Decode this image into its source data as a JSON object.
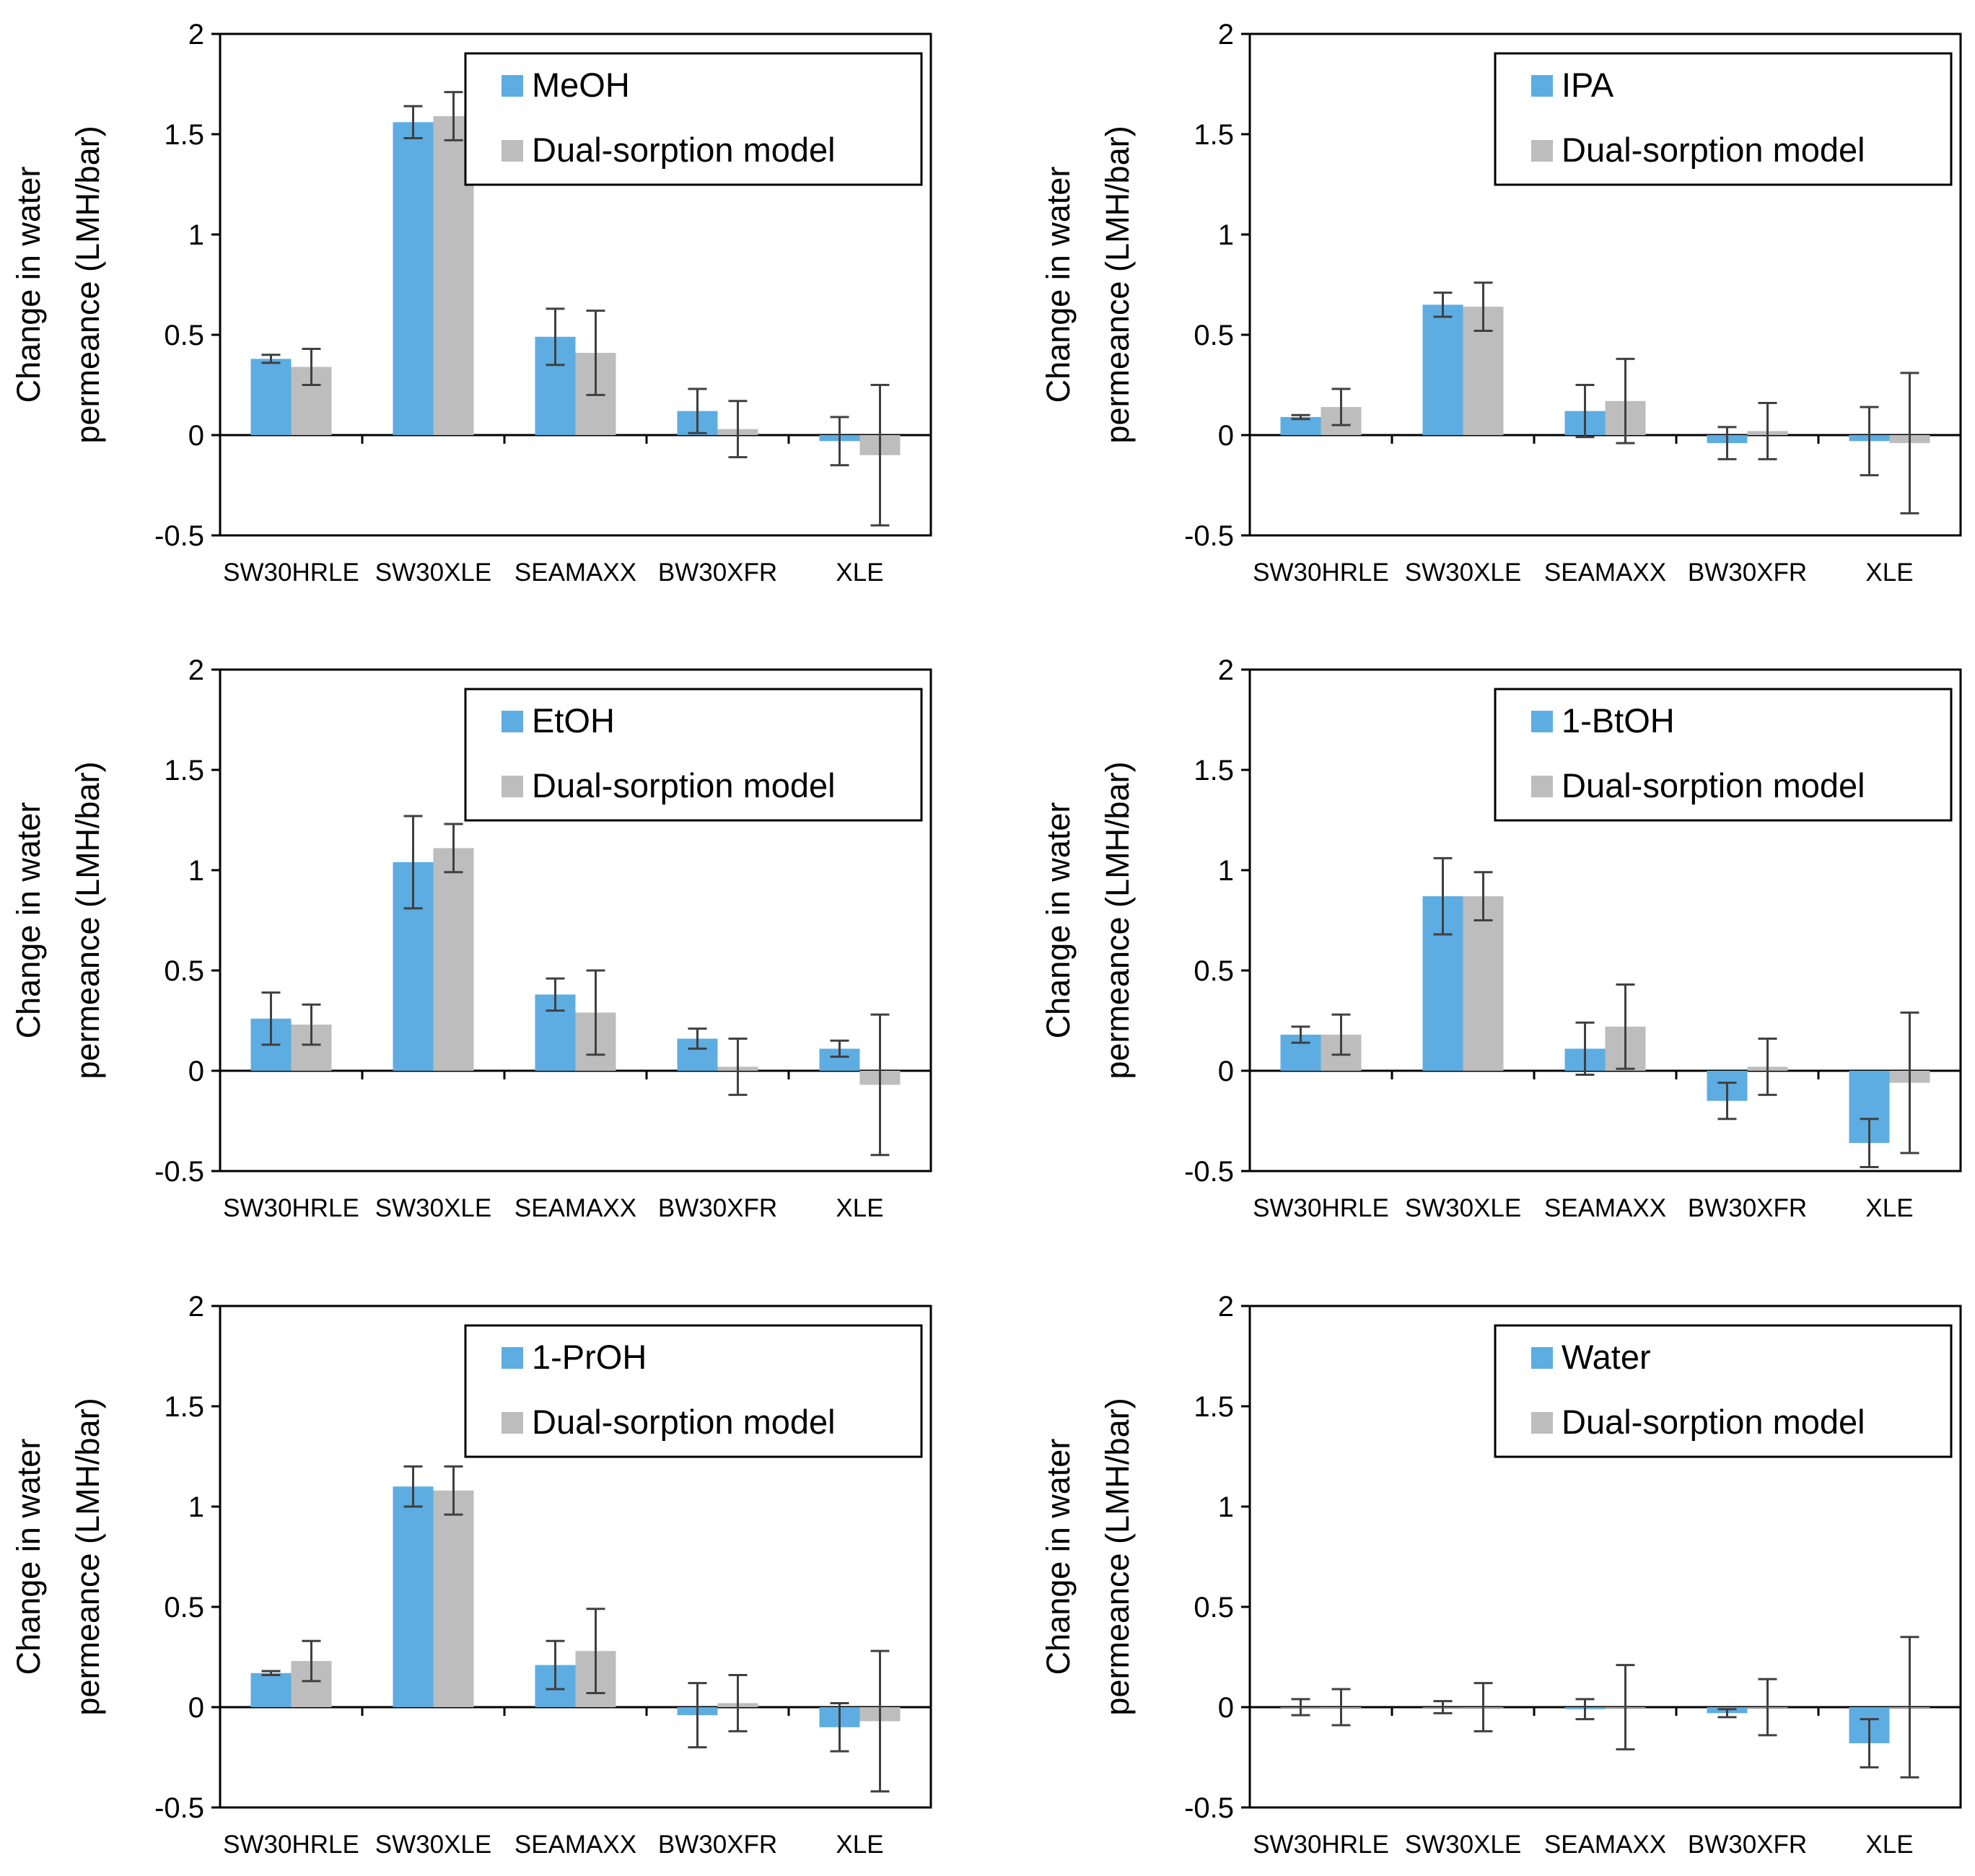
{
  "colors": {
    "measured": "#5DADE2",
    "model": "#BDBDBD",
    "errorbar": "#404040",
    "axis": "#000000"
  },
  "y_axis": {
    "label_line1": "Change in water",
    "label_line2": "permeance (LMH/bar)",
    "ticks": [
      "2",
      "1.5",
      "1",
      "0.5",
      "0",
      "-0.5"
    ],
    "tick_values": [
      2,
      1.5,
      1,
      0.5,
      0,
      -0.5
    ],
    "ylim": [
      -0.5,
      2
    ]
  },
  "categories": [
    "SW30HRLE",
    "SW30XLE",
    "SEAMAXX",
    "BW30XFR",
    "XLE"
  ],
  "model_label": "Dual-sorption model",
  "chart_data": [
    {
      "type": "bar",
      "title": "",
      "xlabel": "",
      "ylabel": "Change in water permeance (LMH/bar)",
      "categories": [
        "SW30HRLE",
        "SW30XLE",
        "SEAMAXX",
        "BW30XFR",
        "XLE"
      ],
      "ylim": [
        -0.5,
        2
      ],
      "legend": "top-right",
      "series": [
        {
          "name": "MeOH",
          "values": [
            0.38,
            1.56,
            0.49,
            0.12,
            -0.03
          ],
          "errors": [
            0.02,
            0.08,
            0.14,
            0.11,
            0.12
          ]
        },
        {
          "name": "Dual-sorption model",
          "values": [
            0.34,
            1.59,
            0.41,
            0.03,
            -0.1
          ],
          "errors": [
            0.09,
            0.12,
            0.21,
            0.14,
            0.35
          ]
        }
      ]
    },
    {
      "type": "bar",
      "title": "",
      "xlabel": "",
      "ylabel": "Change in water permeance (LMH/bar)",
      "categories": [
        "SW30HRLE",
        "SW30XLE",
        "SEAMAXX",
        "BW30XFR",
        "XLE"
      ],
      "ylim": [
        -0.5,
        2
      ],
      "legend": "top-right",
      "series": [
        {
          "name": "IPA",
          "values": [
            0.09,
            0.65,
            0.12,
            -0.04,
            -0.03
          ],
          "errors": [
            0.01,
            0.06,
            0.13,
            0.08,
            0.17
          ]
        },
        {
          "name": "Dual-sorption model",
          "values": [
            0.14,
            0.64,
            0.17,
            0.02,
            -0.04
          ],
          "errors": [
            0.09,
            0.12,
            0.21,
            0.14,
            0.35
          ]
        }
      ]
    },
    {
      "type": "bar",
      "title": "",
      "xlabel": "",
      "ylabel": "Change in water permeance (LMH/bar)",
      "categories": [
        "SW30HRLE",
        "SW30XLE",
        "SEAMAXX",
        "BW30XFR",
        "XLE"
      ],
      "ylim": [
        -0.5,
        2
      ],
      "legend": "top-right",
      "series": [
        {
          "name": "EtOH",
          "values": [
            0.26,
            1.04,
            0.38,
            0.16,
            0.11
          ],
          "errors": [
            0.13,
            0.23,
            0.08,
            0.05,
            0.04
          ]
        },
        {
          "name": "Dual-sorption model",
          "values": [
            0.23,
            1.11,
            0.29,
            0.02,
            -0.07
          ],
          "errors": [
            0.1,
            0.12,
            0.21,
            0.14,
            0.35
          ]
        }
      ]
    },
    {
      "type": "bar",
      "title": "",
      "xlabel": "",
      "ylabel": "Change in water permeance (LMH/bar)",
      "categories": [
        "SW30HRLE",
        "SW30XLE",
        "SEAMAXX",
        "BW30XFR",
        "XLE"
      ],
      "ylim": [
        -0.5,
        2
      ],
      "legend": "top-right",
      "series": [
        {
          "name": "1-BtOH",
          "values": [
            0.18,
            0.87,
            0.11,
            -0.15,
            -0.36
          ],
          "errors": [
            0.04,
            0.19,
            0.13,
            0.09,
            0.12
          ]
        },
        {
          "name": "Dual-sorption model",
          "values": [
            0.18,
            0.87,
            0.22,
            0.02,
            -0.06
          ],
          "errors": [
            0.1,
            0.12,
            0.21,
            0.14,
            0.35
          ]
        }
      ]
    },
    {
      "type": "bar",
      "title": "",
      "xlabel": "",
      "ylabel": "Change in water permeance (LMH/bar)",
      "categories": [
        "SW30HRLE",
        "SW30XLE",
        "SEAMAXX",
        "BW30XFR",
        "XLE"
      ],
      "ylim": [
        -0.5,
        2
      ],
      "legend": "top-right",
      "series": [
        {
          "name": "1-PrOH",
          "values": [
            0.17,
            1.1,
            0.21,
            -0.04,
            -0.1
          ],
          "errors": [
            0.01,
            0.1,
            0.12,
            0.16,
            0.12
          ]
        },
        {
          "name": "Dual-sorption model",
          "values": [
            0.23,
            1.08,
            0.28,
            0.02,
            -0.07
          ],
          "errors": [
            0.1,
            0.12,
            0.21,
            0.14,
            0.35
          ]
        }
      ]
    },
    {
      "type": "bar",
      "title": "",
      "xlabel": "",
      "ylabel": "Change in water permeance (LMH/bar)",
      "categories": [
        "SW30HRLE",
        "SW30XLE",
        "SEAMAXX",
        "BW30XFR",
        "XLE"
      ],
      "ylim": [
        -0.5,
        2
      ],
      "legend": "top-right",
      "series": [
        {
          "name": "Water",
          "values": [
            0.0,
            0.0,
            -0.01,
            -0.03,
            -0.18
          ],
          "errors": [
            0.04,
            0.03,
            0.05,
            0.02,
            0.12
          ]
        },
        {
          "name": "Dual-sorption model",
          "values": [
            0.0,
            0.0,
            0.0,
            0.0,
            0.0
          ],
          "errors": [
            0.09,
            0.12,
            0.21,
            0.14,
            0.35
          ]
        }
      ]
    }
  ]
}
